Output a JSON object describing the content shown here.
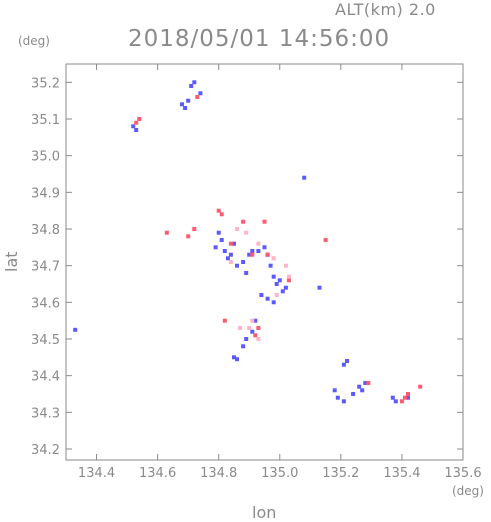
{
  "header": {
    "altitude_label": "ALT(km) 2.0",
    "timestamp": "2018/05/01 14:56:00"
  },
  "colors": {
    "axis": "#8a8a8a",
    "series_blue": "#5a5aff",
    "series_red": "#ff5a6e",
    "series_pink": "#ffb4c8"
  },
  "chart_data": {
    "type": "scatter",
    "title": "",
    "xlabel": "lon",
    "ylabel": "lat",
    "x_unit": "(deg)",
    "y_unit": "(deg)",
    "xlim": [
      134.3,
      135.6
    ],
    "ylim": [
      34.17,
      35.25
    ],
    "x_ticks": [
      "134.4",
      "134.6",
      "134.8",
      "135.0",
      "135.2",
      "135.4",
      "135.6"
    ],
    "y_ticks": [
      "34.2",
      "34.3",
      "34.4",
      "34.5",
      "34.6",
      "34.7",
      "34.8",
      "34.9",
      "35.0",
      "35.1",
      "35.2"
    ],
    "grid": false,
    "legend": "none",
    "series": [
      {
        "values": [
          [
            134.33,
            34.525
          ],
          [
            134.52,
            35.08
          ],
          [
            134.53,
            35.07
          ],
          [
            134.68,
            35.14
          ],
          [
            134.69,
            35.13
          ],
          [
            134.7,
            35.15
          ],
          [
            134.71,
            35.19
          ],
          [
            134.72,
            35.2
          ],
          [
            134.74,
            35.17
          ],
          [
            134.79,
            34.75
          ],
          [
            134.8,
            34.79
          ],
          [
            134.81,
            34.77
          ],
          [
            134.82,
            34.74
          ],
          [
            134.83,
            34.72
          ],
          [
            134.84,
            34.73
          ],
          [
            134.85,
            34.76
          ],
          [
            134.86,
            34.7
          ],
          [
            134.88,
            34.71
          ],
          [
            134.89,
            34.68
          ],
          [
            134.9,
            34.73
          ],
          [
            134.91,
            34.74
          ],
          [
            134.93,
            34.74
          ],
          [
            134.95,
            34.75
          ],
          [
            134.96,
            34.73
          ],
          [
            134.97,
            34.7
          ],
          [
            134.98,
            34.67
          ],
          [
            134.99,
            34.65
          ],
          [
            135.0,
            34.66
          ],
          [
            135.01,
            34.63
          ],
          [
            135.02,
            34.64
          ],
          [
            134.94,
            34.62
          ],
          [
            134.96,
            34.61
          ],
          [
            134.98,
            34.6
          ],
          [
            134.85,
            34.45
          ],
          [
            134.86,
            34.445
          ],
          [
            134.88,
            34.48
          ],
          [
            134.89,
            34.5
          ],
          [
            134.91,
            34.52
          ],
          [
            134.92,
            34.55
          ],
          [
            135.08,
            34.94
          ],
          [
            135.13,
            34.64
          ],
          [
            135.21,
            34.43
          ],
          [
            135.22,
            34.44
          ],
          [
            135.18,
            34.36
          ],
          [
            135.19,
            34.34
          ],
          [
            135.21,
            34.33
          ],
          [
            135.24,
            34.35
          ],
          [
            135.26,
            34.37
          ],
          [
            135.27,
            34.36
          ],
          [
            135.28,
            34.38
          ],
          [
            135.37,
            34.34
          ],
          [
            135.38,
            34.33
          ],
          [
            135.42,
            34.34
          ]
        ]
      },
      {
        "values": [
          [
            134.54,
            35.1
          ],
          [
            134.53,
            35.09
          ],
          [
            134.63,
            34.79
          ],
          [
            134.7,
            34.78
          ],
          [
            134.72,
            34.8
          ],
          [
            134.73,
            35.16
          ],
          [
            134.8,
            34.85
          ],
          [
            134.81,
            34.84
          ],
          [
            134.82,
            34.55
          ],
          [
            134.84,
            34.76
          ],
          [
            134.88,
            34.82
          ],
          [
            134.91,
            34.73
          ],
          [
            134.95,
            34.82
          ],
          [
            134.96,
            34.73
          ],
          [
            135.03,
            34.66
          ],
          [
            135.15,
            34.77
          ],
          [
            135.29,
            34.38
          ],
          [
            135.4,
            34.33
          ],
          [
            135.41,
            34.34
          ],
          [
            135.42,
            34.35
          ],
          [
            135.46,
            34.37
          ],
          [
            134.92,
            34.51
          ],
          [
            134.93,
            34.53
          ]
        ]
      },
      {
        "values": [
          [
            134.86,
            34.8
          ],
          [
            134.89,
            34.79
          ],
          [
            134.93,
            34.76
          ],
          [
            134.98,
            34.72
          ],
          [
            135.02,
            34.7
          ],
          [
            134.9,
            34.53
          ],
          [
            134.91,
            34.55
          ],
          [
            134.93,
            34.5
          ],
          [
            134.87,
            34.53
          ],
          [
            134.99,
            34.62
          ],
          [
            135.03,
            34.67
          ],
          [
            134.84,
            34.71
          ]
        ]
      }
    ]
  }
}
